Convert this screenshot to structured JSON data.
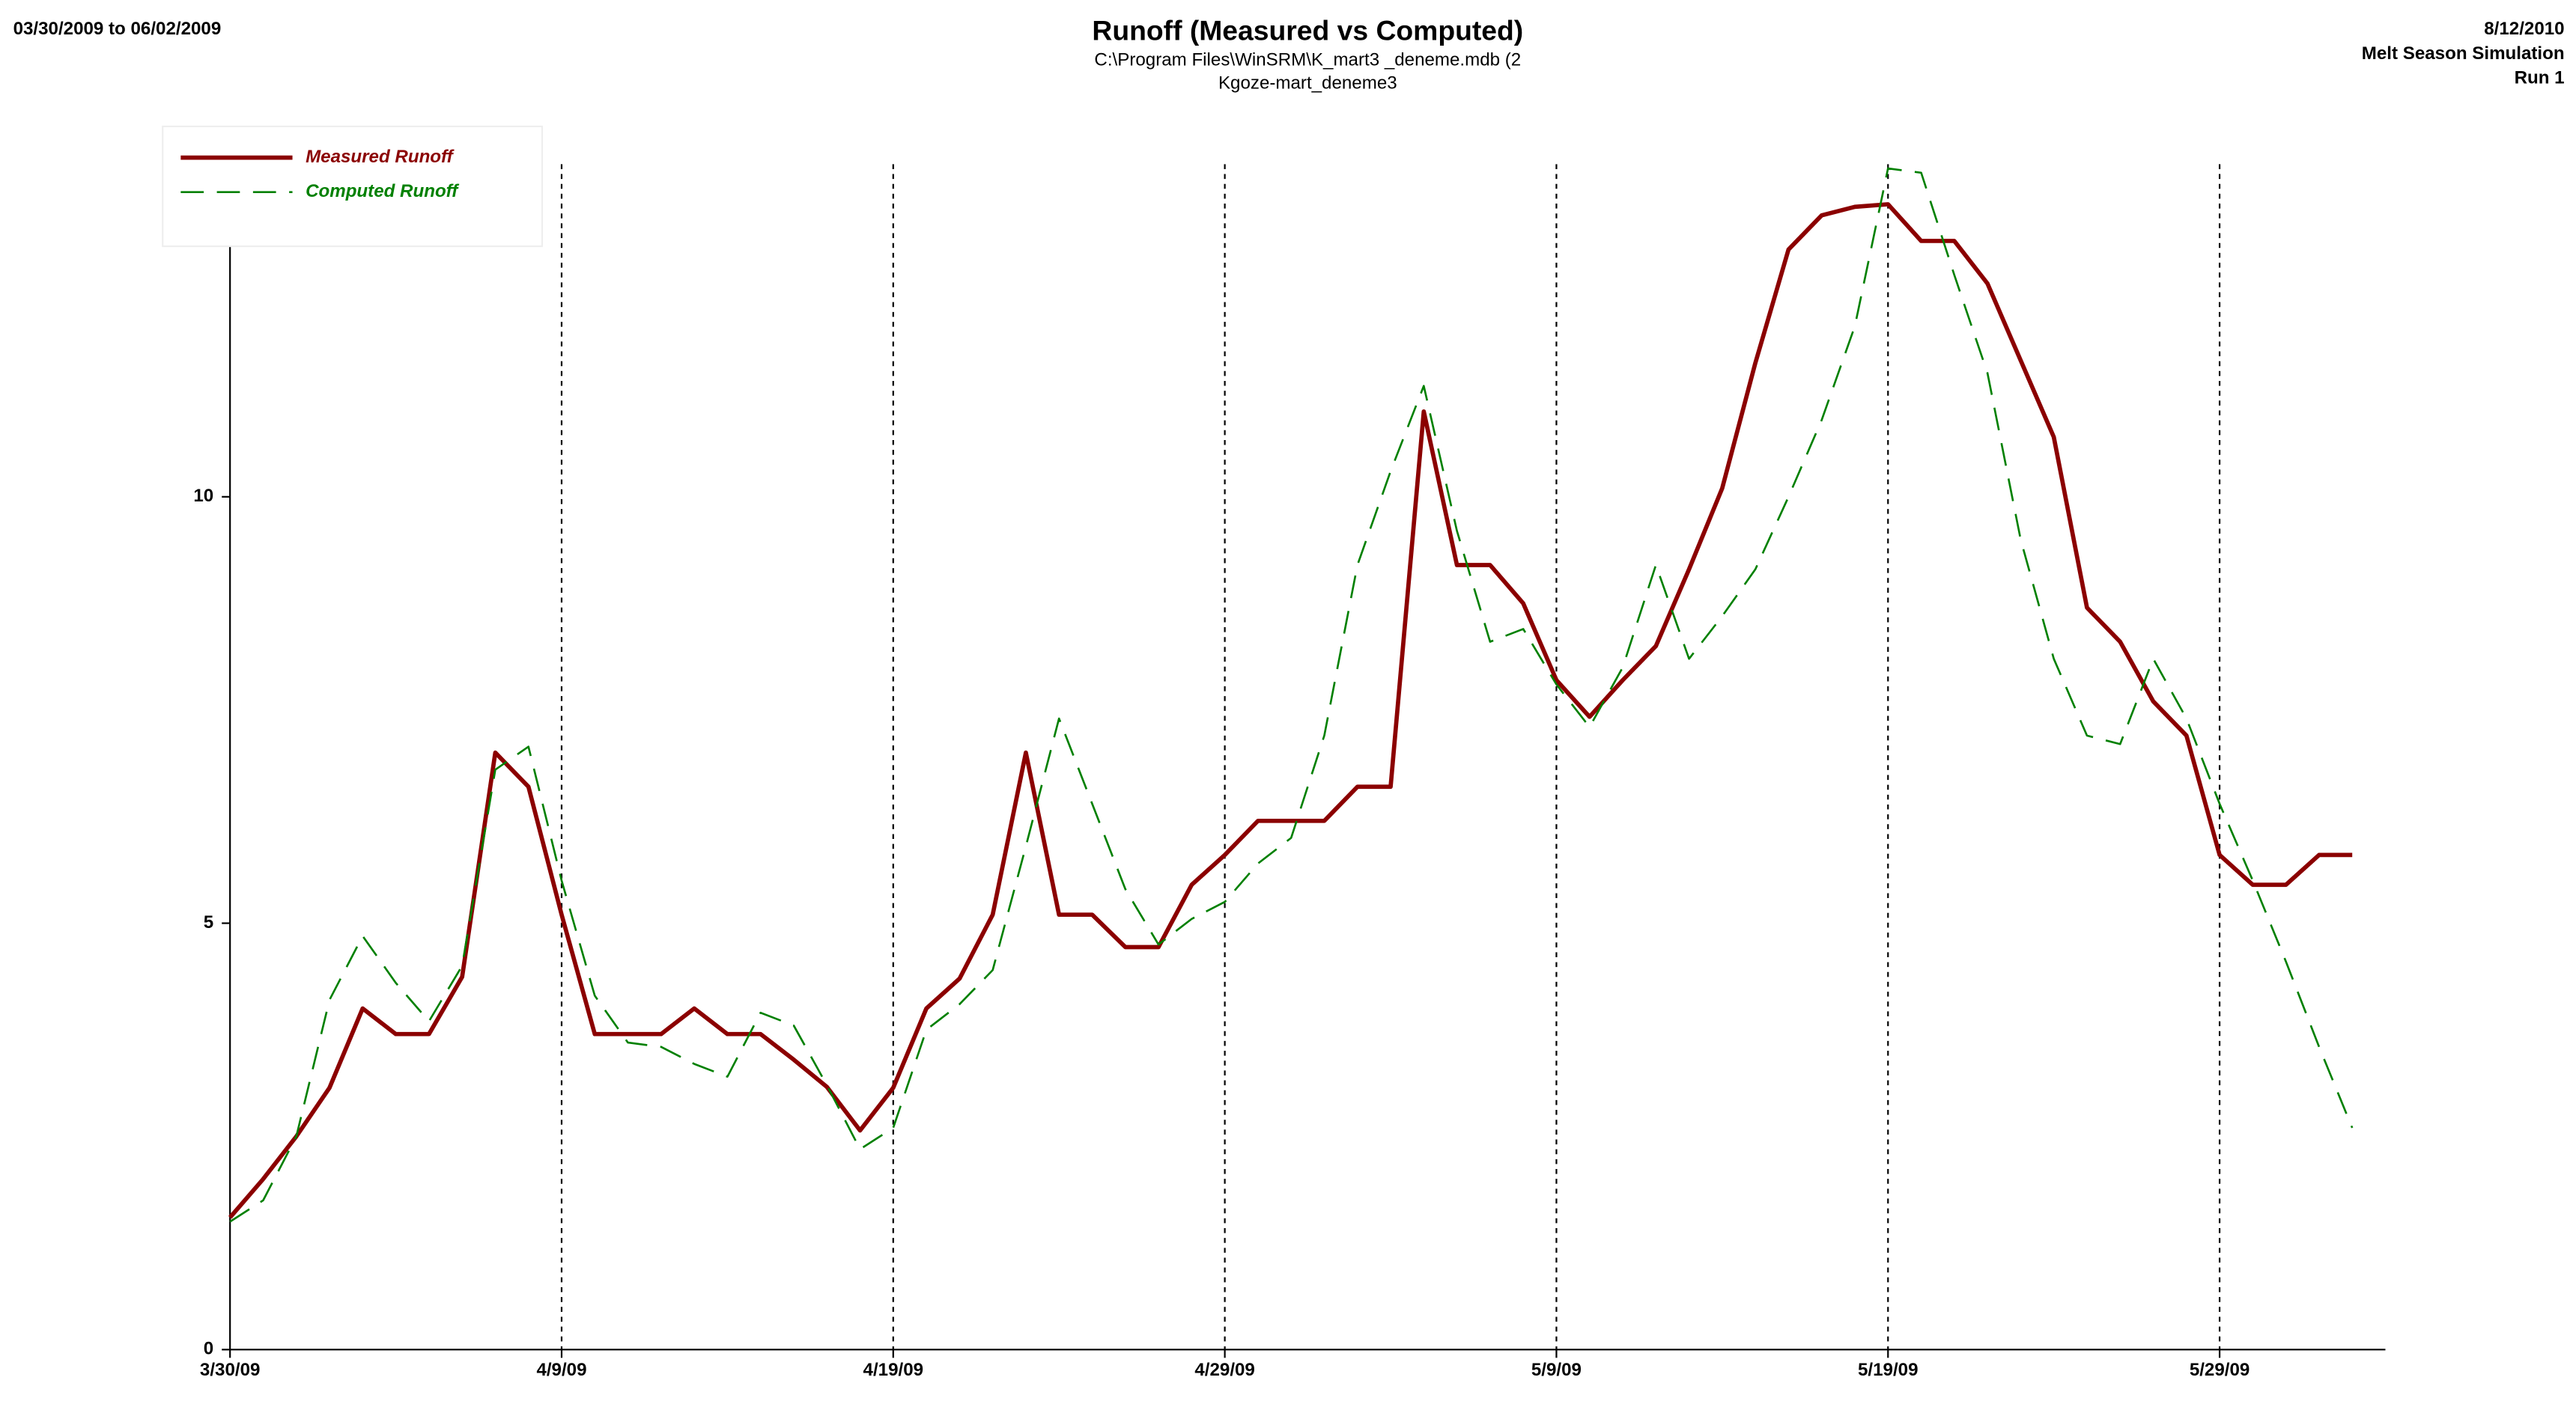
{
  "chart_data": {
    "type": "line",
    "title": "Runoff (Measured vs Computed)",
    "subtitle": [
      "C:\\Program Files\\WinSRM\\K_mart3 _deneme.mdb (2",
      "Kgoze-mart_deneme3"
    ],
    "date_range": "03/30/2009 to 06/02/2009",
    "header_right": [
      "8/12/2010",
      "Melt Season Simulation",
      "Run 1"
    ],
    "x": [
      "3/30/09",
      "3/31/09",
      "4/1/09",
      "4/2/09",
      "4/3/09",
      "4/4/09",
      "4/5/09",
      "4/6/09",
      "4/7/09",
      "4/8/09",
      "4/9/09",
      "4/10/09",
      "4/11/09",
      "4/12/09",
      "4/13/09",
      "4/14/09",
      "4/15/09",
      "4/16/09",
      "4/17/09",
      "4/18/09",
      "4/19/09",
      "4/20/09",
      "4/21/09",
      "4/22/09",
      "4/23/09",
      "4/24/09",
      "4/25/09",
      "4/26/09",
      "4/27/09",
      "4/28/09",
      "4/29/09",
      "4/30/09",
      "5/1/09",
      "5/2/09",
      "5/3/09",
      "5/4/09",
      "5/5/09",
      "5/6/09",
      "5/7/09",
      "5/8/09",
      "5/9/09",
      "5/10/09",
      "5/11/09",
      "5/12/09",
      "5/13/09",
      "5/14/09",
      "5/15/09",
      "5/16/09",
      "5/17/09",
      "5/18/09",
      "5/19/09",
      "5/20/09",
      "5/21/09",
      "5/22/09",
      "5/23/09",
      "5/24/09",
      "5/25/09",
      "5/26/09",
      "5/27/09",
      "5/28/09",
      "5/29/09",
      "5/30/09",
      "5/31/09",
      "6/1/09",
      "6/2/09"
    ],
    "series": [
      {
        "name": "Measured Runoff",
        "color": "#8b0000",
        "dash": false,
        "values": [
          1.55,
          2.0,
          2.5,
          3.07,
          4.0,
          3.7,
          3.7,
          4.37,
          7.0,
          6.6,
          5.1,
          3.7,
          3.7,
          3.7,
          4.0,
          3.7,
          3.7,
          3.4,
          3.08,
          2.57,
          3.07,
          4.0,
          4.35,
          5.1,
          7.0,
          5.1,
          5.1,
          4.72,
          4.72,
          5.45,
          5.8,
          6.2,
          6.2,
          6.2,
          6.6,
          6.6,
          11.0,
          9.2,
          9.2,
          8.75,
          7.85,
          7.42,
          7.85,
          8.25,
          9.15,
          10.1,
          11.57,
          12.9,
          13.3,
          13.4,
          13.43,
          13.0,
          13.0,
          12.5,
          11.6,
          10.7,
          8.7,
          8.3,
          7.6,
          7.2,
          5.8,
          5.45,
          5.45,
          5.8,
          5.8
        ]
      },
      {
        "name": "Computed Runoff",
        "color": "#008000",
        "dash": true,
        "values": [
          1.5,
          1.75,
          2.5,
          4.1,
          4.85,
          4.3,
          3.85,
          4.5,
          6.8,
          7.07,
          5.5,
          4.15,
          3.6,
          3.55,
          3.35,
          3.2,
          3.95,
          3.8,
          3.1,
          2.35,
          2.6,
          3.75,
          4.05,
          4.45,
          5.9,
          7.4,
          6.4,
          5.4,
          4.75,
          5.05,
          5.25,
          5.7,
          6.0,
          7.2,
          9.2,
          10.3,
          11.3,
          9.6,
          8.3,
          8.45,
          7.8,
          7.3,
          8.0,
          9.2,
          8.1,
          8.6,
          9.15,
          10.0,
          10.9,
          12.0,
          13.85,
          13.8,
          12.6,
          11.45,
          9.5,
          8.1,
          7.2,
          7.1,
          8.1,
          7.4,
          6.4,
          5.5,
          4.55,
          3.55,
          2.6
        ]
      }
    ],
    "xlim": [
      "3/30/09",
      "6/3/09"
    ],
    "xticks": [
      "3/30/09",
      "4/9/09",
      "4/19/09",
      "4/29/09",
      "5/9/09",
      "5/19/09",
      "5/29/09"
    ],
    "ylim": [
      0,
      13.9
    ],
    "yticks": [
      0,
      5,
      10
    ],
    "grid": true,
    "legend": "top-left"
  }
}
